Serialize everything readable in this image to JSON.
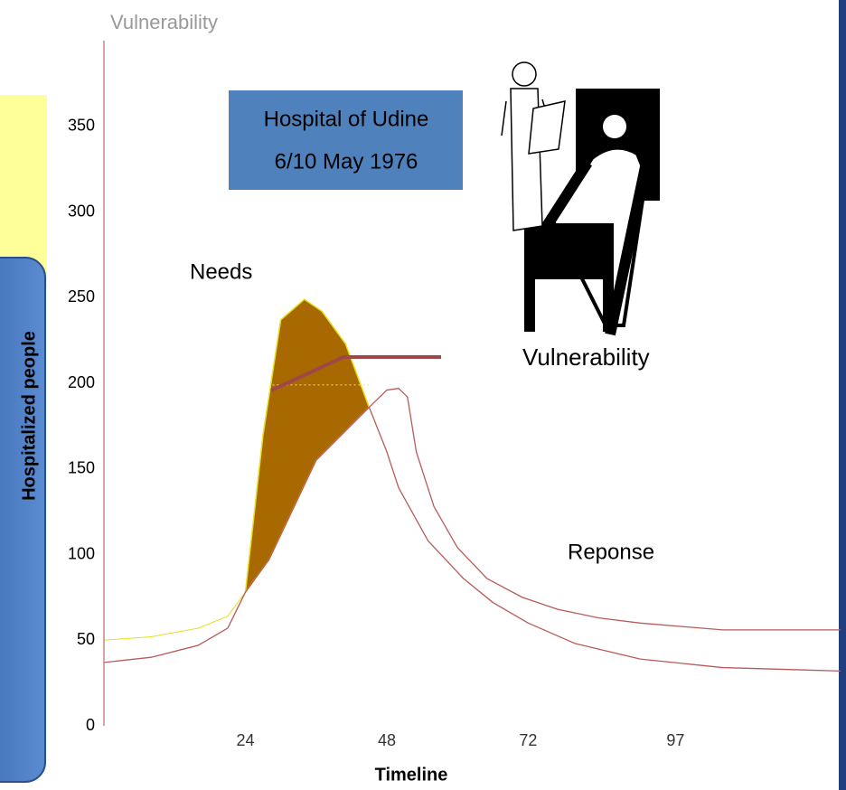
{
  "chart_data": {
    "type": "line",
    "top_label": "Vulnerability",
    "box_lines": [
      "Hospital of Udine",
      "6/10 May 1976"
    ],
    "annotation": "Vulnerability",
    "xlabel": "Timeline",
    "ylabel": "Hospitalized people",
    "xlim": [
      0,
      125
    ],
    "xticks": [
      24,
      48,
      72,
      97
    ],
    "ylim": [
      0,
      400
    ],
    "yticks": [
      0,
      50,
      100,
      150,
      200,
      250,
      300,
      350
    ],
    "series": [
      {
        "name": "Needs",
        "color": "#a86a00",
        "edgecolor": "#e6e020",
        "x": [
          0,
          8,
          16,
          21,
          24,
          27,
          30,
          34,
          37,
          41,
          45
        ],
        "values": [
          50,
          52,
          57,
          64,
          78,
          170,
          237,
          249,
          242,
          223,
          186
        ]
      },
      {
        "name": "Reponse",
        "color": "#b85a5a",
        "x": [
          0,
          8,
          16,
          21,
          24,
          28,
          36,
          45,
          48,
          50,
          51.5,
          53,
          56,
          60,
          65,
          71,
          77,
          84,
          91,
          105,
          125,
          null,
          45,
          48,
          50,
          55,
          61,
          66,
          72,
          80,
          91,
          105,
          125
        ],
        "values": [
          37,
          40,
          47,
          57,
          78,
          97,
          155,
          186,
          196,
          197,
          192,
          160,
          128,
          104,
          86,
          75,
          68,
          63,
          60,
          56,
          56,
          null,
          186,
          160,
          139,
          108,
          86,
          72,
          60,
          48,
          39,
          34,
          32
        ]
      }
    ]
  }
}
